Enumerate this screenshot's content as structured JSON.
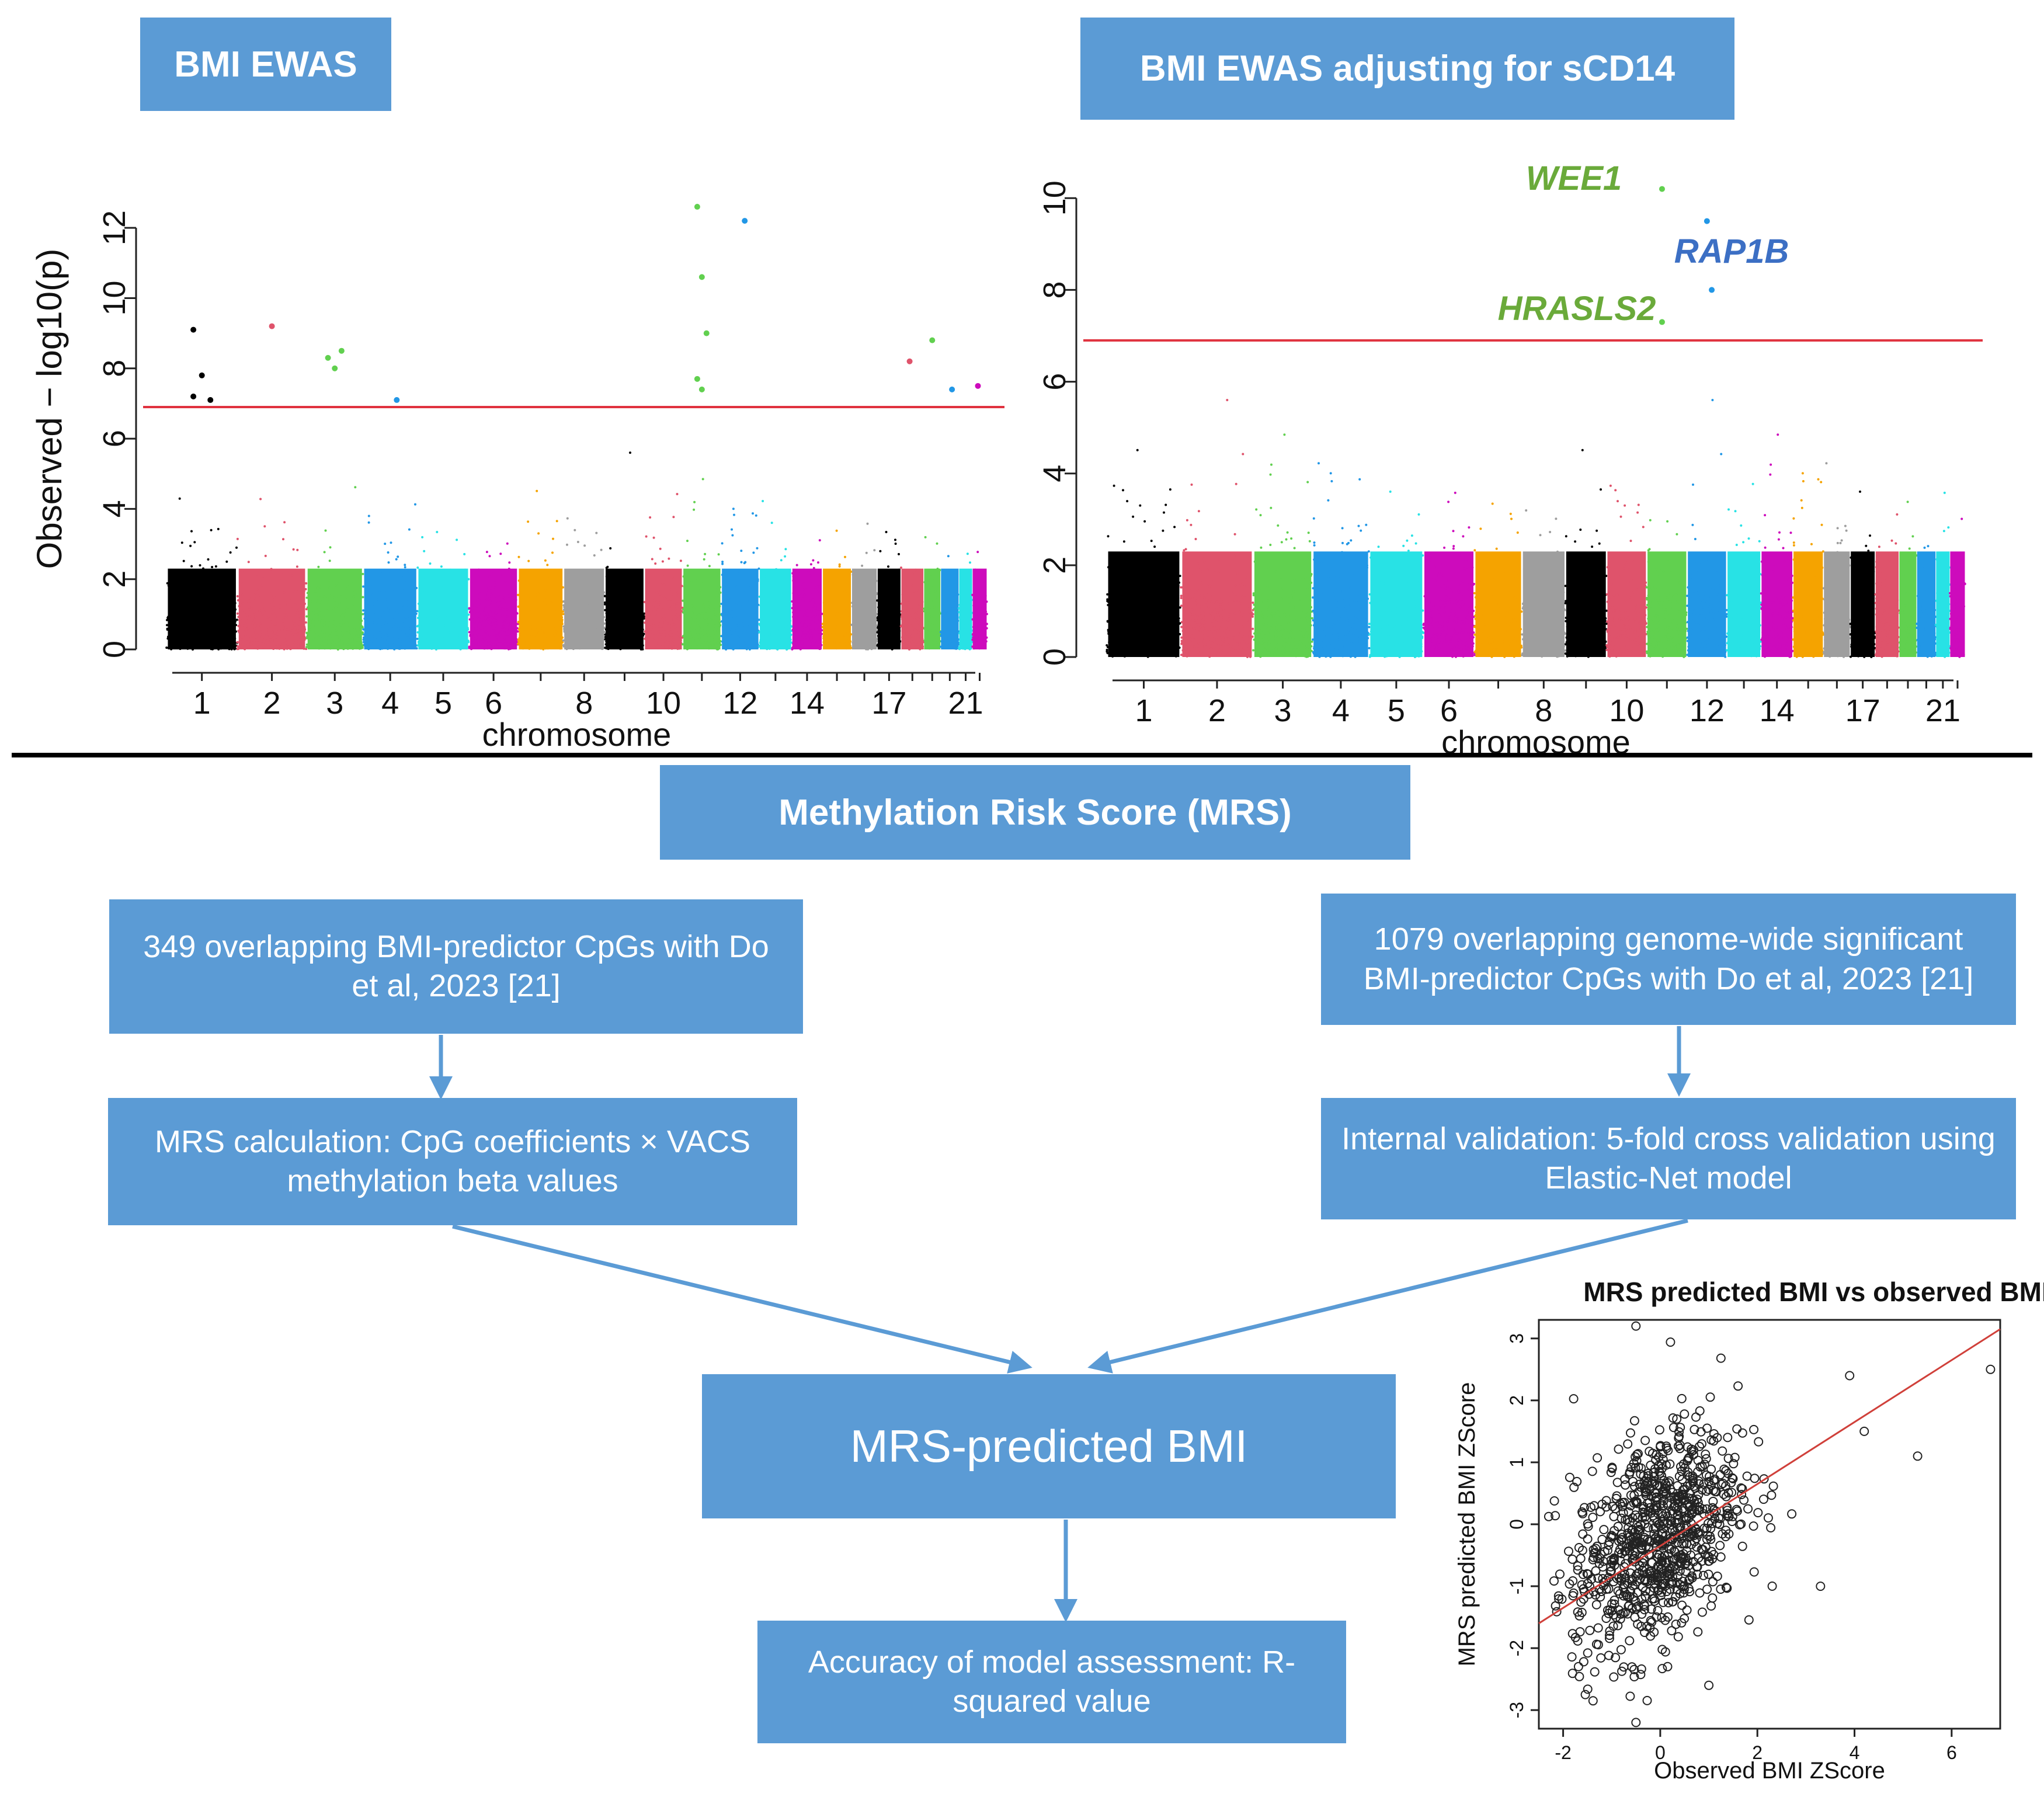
{
  "panels": {
    "left_title": "BMI EWAS",
    "right_title": "BMI EWAS adjusting for sCD14",
    "mrs_title": "Methylation Risk Score (MRS)"
  },
  "flow": {
    "left_input": "349 overlapping BMI-predictor CpGs with Do et al, 2023 [21]",
    "right_input": "1079 overlapping genome-wide significant BMI-predictor CpGs with Do et al, 2023 [21]",
    "left_step": "MRS calculation: CpG coefficients × VACS methylation beta values",
    "right_step": "Internal validation: 5-fold cross validation using Elastic-Net model",
    "center": "MRS-predicted BMI",
    "bottom": "Accuracy of model assessment: R-squared value"
  },
  "colors": {
    "box": "#5b9bd5",
    "threshold": "#e0323f",
    "chrom_palette": [
      "#000000",
      "#df536b",
      "#61d04f",
      "#2297e6",
      "#28e2e5",
      "#cd0bbc",
      "#f5a300",
      "#9e9e9e"
    ],
    "gene_green": "#6aaa3a",
    "gene_blue": "#3c6fc4"
  },
  "chart_data": [
    {
      "type": "scatter",
      "subtype": "manhattan",
      "title": "BMI EWAS",
      "xlabel": "chromosome",
      "ylabel": "Observed − log10(p)",
      "ylim": [
        0,
        13
      ],
      "yticks": [
        "0",
        "2",
        "4",
        "6",
        "8",
        "10",
        "12"
      ],
      "xticks": [
        "1",
        "2",
        "3",
        "4",
        "5",
        "6",
        "8",
        "10",
        "12",
        "14",
        "17",
        "21"
      ],
      "threshold": 6.9,
      "chromosomes": [
        1,
        2,
        3,
        4,
        5,
        6,
        7,
        8,
        9,
        10,
        11,
        12,
        13,
        14,
        15,
        16,
        17,
        18,
        19,
        20,
        21,
        22
      ],
      "peaks": [
        {
          "chr": 1,
          "y": 9.1
        },
        {
          "chr": 1,
          "y": 7.8
        },
        {
          "chr": 1,
          "y": 7.1
        },
        {
          "chr": 1,
          "y": 7.2
        },
        {
          "chr": 2,
          "y": 9.2
        },
        {
          "chr": 3,
          "y": 8.5
        },
        {
          "chr": 3,
          "y": 8.3
        },
        {
          "chr": 3,
          "y": 8.0
        },
        {
          "chr": 4,
          "y": 7.1
        },
        {
          "chr": 11,
          "y": 12.6
        },
        {
          "chr": 11,
          "y": 10.6
        },
        {
          "chr": 11,
          "y": 9.0
        },
        {
          "chr": 11,
          "y": 7.7
        },
        {
          "chr": 11,
          "y": 7.4
        },
        {
          "chr": 12,
          "y": 12.2
        },
        {
          "chr": 18,
          "y": 8.2
        },
        {
          "chr": 19,
          "y": 8.8
        },
        {
          "chr": 20,
          "y": 7.4
        },
        {
          "chr": 22,
          "y": 7.5
        }
      ]
    },
    {
      "type": "scatter",
      "subtype": "manhattan",
      "title": "BMI EWAS adjusting for sCD14",
      "xlabel": "chromosome",
      "ylabel": "",
      "ylim": [
        0,
        10.5
      ],
      "yticks": [
        "0",
        "2",
        "4",
        "6",
        "8",
        "10"
      ],
      "xticks": [
        "1",
        "2",
        "3",
        "4",
        "5",
        "6",
        "8",
        "10",
        "12",
        "14",
        "17",
        "21"
      ],
      "threshold": 6.9,
      "chromosomes": [
        1,
        2,
        3,
        4,
        5,
        6,
        7,
        8,
        9,
        10,
        11,
        12,
        13,
        14,
        15,
        16,
        17,
        18,
        19,
        20,
        21,
        22
      ],
      "peaks": [
        {
          "chr": 11,
          "y": 10.2,
          "gene": "WEE1"
        },
        {
          "chr": 12,
          "y": 9.5
        },
        {
          "chr": 12,
          "y": 8.0,
          "gene": "RAP1B"
        },
        {
          "chr": 11,
          "y": 7.3,
          "gene": "HRASLS2"
        }
      ],
      "annotations": [
        "WEE1",
        "RAP1B",
        "HRASLS2"
      ]
    },
    {
      "type": "scatter",
      "title": "MRS predicted BMI vs observed BMI",
      "xlabel": "Observed BMI ZScore",
      "ylabel": "MRS predicted BMI ZScore",
      "xlim": [
        -2.5,
        7
      ],
      "ylim": [
        -3.3,
        3.3
      ],
      "xticks": [
        "-2",
        "0",
        "2",
        "4",
        "6"
      ],
      "yticks": [
        "-3",
        "-2",
        "-1",
        "0",
        "1",
        "2",
        "3"
      ],
      "fit_line": {
        "intercept": -0.35,
        "slope": 0.5
      },
      "outliers": [
        {
          "x": 6.8,
          "y": 2.5
        },
        {
          "x": 5.3,
          "y": 1.1
        },
        {
          "x": 4.2,
          "y": 1.5
        },
        {
          "x": -0.5,
          "y": 3.2
        },
        {
          "x": -0.5,
          "y": -3.2
        },
        {
          "x": 3.3,
          "y": -1.0
        },
        {
          "x": 3.9,
          "y": 2.4
        },
        {
          "x": 1.0,
          "y": -2.6
        }
      ],
      "n_points": 900
    }
  ]
}
